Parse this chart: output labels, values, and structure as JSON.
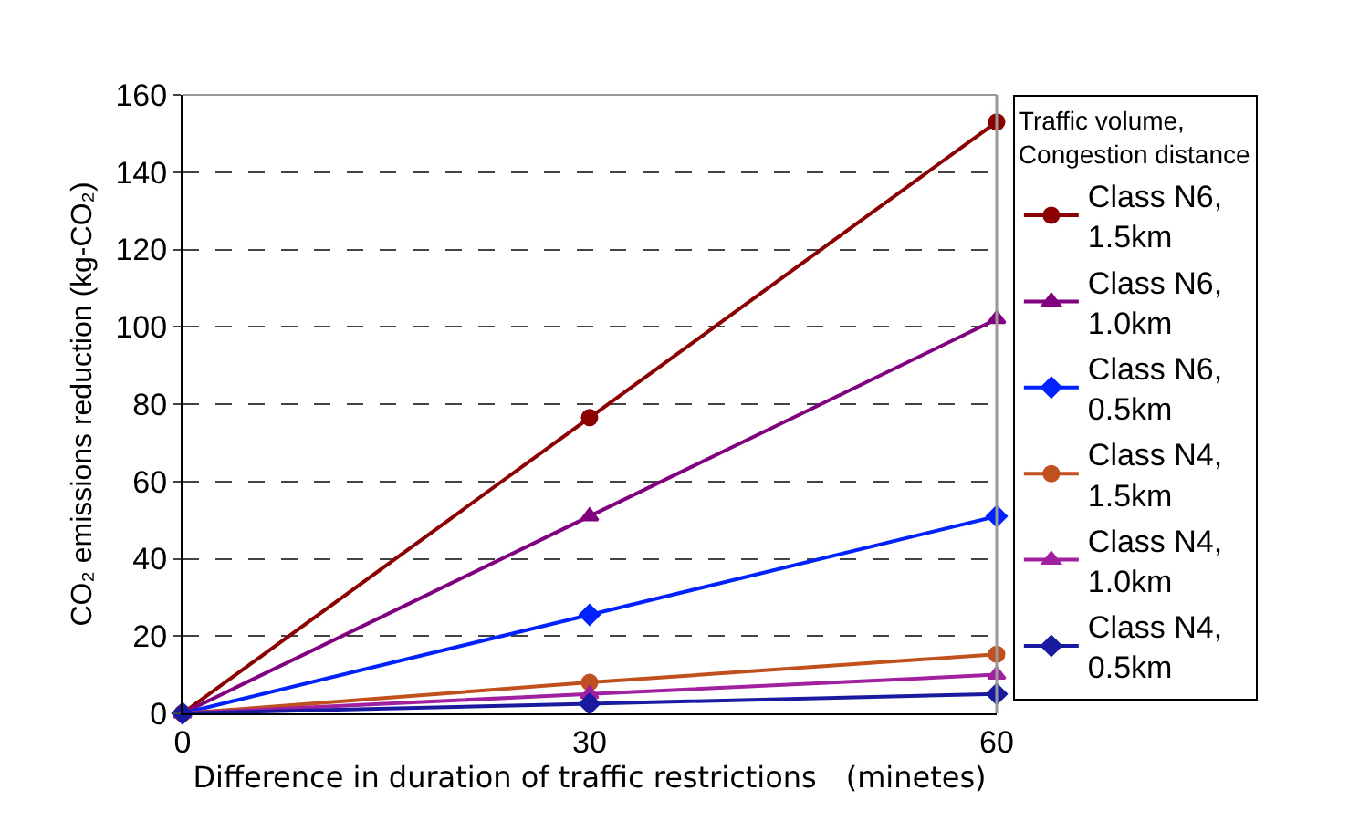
{
  "chart_data": {
    "type": "line",
    "xlabel": "Difference in duration of traffic restrictions　(minetes)",
    "ylabel": "CO₂ emissions reduction (kg-CO₂)",
    "legend_title": "Traffic volume,\nCongestion distance",
    "x": [
      0,
      30,
      60
    ],
    "xlim": [
      0,
      60
    ],
    "xticks": [
      0,
      30,
      60
    ],
    "ylim": [
      0,
      160
    ],
    "yticks": [
      0,
      20,
      40,
      60,
      80,
      100,
      120,
      140,
      160
    ],
    "grid": "y",
    "legend": "right",
    "line_style": "solid",
    "series": [
      {
        "name": "Class N6,\n1.5km",
        "color": "#8b0000",
        "marker": "circle",
        "values": [
          0,
          76.5,
          153
        ]
      },
      {
        "name": "Class N6,\n1.0km",
        "color": "#800080",
        "marker": "triangle",
        "values": [
          0,
          51,
          102
        ]
      },
      {
        "name": "Class N6,\n0.5km",
        "color": "#0022ff",
        "marker": "diamond",
        "values": [
          0,
          25.5,
          51
        ]
      },
      {
        "name": "Class N4,\n1.5km",
        "color": "#c0501e",
        "marker": "circle",
        "values": [
          0,
          8,
          15.3
        ]
      },
      {
        "name": "Class N4,\n1.0km",
        "color": "#a020a0",
        "marker": "triangle",
        "values": [
          0,
          5,
          10
        ]
      },
      {
        "name": "Class N4,\n0.5km",
        "color": "#1a1aa0",
        "marker": "diamond",
        "values": [
          0,
          2.5,
          5
        ]
      }
    ]
  }
}
